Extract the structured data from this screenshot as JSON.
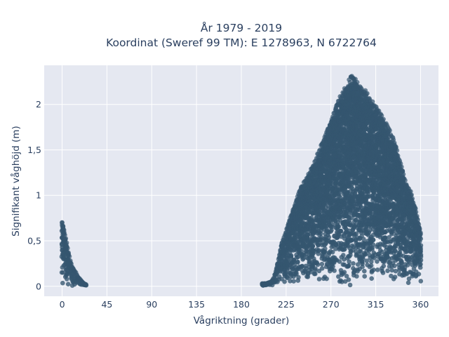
{
  "chart_data": {
    "type": "scatter",
    "title_lines": [
      "År 1979 - 2019",
      "Koordinat (Sweref 99 TM): E 1278963, N 6722764"
    ],
    "xlabel": "Vågriktning (grader)",
    "ylabel": "Signifikant våghöjd (m)",
    "xlim": [
      -18,
      378
    ],
    "ylim": [
      -0.11,
      2.43
    ],
    "x_ticks": [
      0,
      45,
      90,
      135,
      180,
      225,
      270,
      315,
      360
    ],
    "x_tick_labels": [
      "0",
      "45",
      "90",
      "135",
      "180",
      "225",
      "270",
      "315",
      "360"
    ],
    "y_ticks": [
      0,
      0.5,
      1,
      1.5,
      2
    ],
    "y_tick_labels": [
      "0",
      "0,5",
      "1",
      "1,5",
      "2"
    ],
    "grid": true,
    "marker_color": "#34566f",
    "plot_background": "#e5e8f1",
    "series": [
      {
        "envelope": [
          [
            0,
            0.72
          ],
          [
            2,
            0.62
          ],
          [
            4,
            0.52
          ],
          [
            6,
            0.4
          ],
          [
            8,
            0.3
          ],
          [
            10,
            0.22
          ],
          [
            12,
            0.18
          ],
          [
            14,
            0.15
          ],
          [
            16,
            0.1
          ],
          [
            18,
            0.08
          ],
          [
            20,
            0.05
          ],
          [
            22,
            0.03
          ],
          [
            24,
            0.02
          ]
        ]
      },
      {
        "envelope": [
          [
            201,
            0.03
          ],
          [
            205,
            0.03
          ],
          [
            210,
            0.05
          ],
          [
            213,
            0.1
          ],
          [
            215,
            0.18
          ],
          [
            217,
            0.28
          ],
          [
            220,
            0.45
          ],
          [
            223,
            0.55
          ],
          [
            225,
            0.62
          ],
          [
            228,
            0.72
          ],
          [
            232,
            0.85
          ],
          [
            236,
            0.98
          ],
          [
            240,
            1.1
          ],
          [
            245,
            1.18
          ],
          [
            250,
            1.3
          ],
          [
            255,
            1.42
          ],
          [
            260,
            1.55
          ],
          [
            265,
            1.7
          ],
          [
            270,
            1.8
          ],
          [
            275,
            2.0
          ],
          [
            280,
            2.12
          ],
          [
            285,
            2.2
          ],
          [
            290,
            2.32
          ],
          [
            295,
            2.28
          ],
          [
            300,
            2.2
          ],
          [
            305,
            2.15
          ],
          [
            310,
            2.05
          ],
          [
            315,
            2.0
          ],
          [
            320,
            1.9
          ],
          [
            325,
            1.8
          ],
          [
            330,
            1.7
          ],
          [
            335,
            1.55
          ],
          [
            340,
            1.35
          ],
          [
            345,
            1.15
          ],
          [
            350,
            1.05
          ],
          [
            355,
            0.85
          ],
          [
            358,
            0.7
          ],
          [
            360,
            0.6
          ]
        ]
      }
    ]
  }
}
